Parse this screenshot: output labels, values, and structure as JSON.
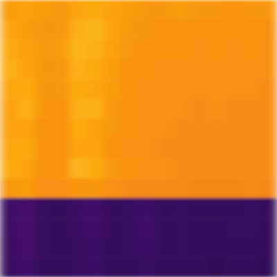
{
  "chart_data": {
    "type": "heatmap",
    "tick_labels": false,
    "zlim": [
      0,
      1
    ],
    "cells": [
      [
        0.78,
        0.79,
        0.78,
        0.77,
        0.8,
        0.81,
        0.79,
        0.78,
        0.77,
        0.77,
        0.78,
        0.77,
        0.77,
        0.76,
        0.77,
        0.77
      ],
      [
        0.8,
        0.78,
        0.77,
        0.77,
        0.82,
        0.83,
        0.8,
        0.77,
        0.77,
        0.76,
        0.76,
        0.76,
        0.76,
        0.76,
        0.76,
        0.76
      ],
      [
        0.81,
        0.79,
        0.77,
        0.78,
        0.83,
        0.82,
        0.79,
        0.77,
        0.76,
        0.76,
        0.76,
        0.75,
        0.76,
        0.75,
        0.76,
        0.75
      ],
      [
        0.82,
        0.8,
        0.77,
        0.77,
        0.82,
        0.81,
        0.78,
        0.76,
        0.76,
        0.75,
        0.75,
        0.75,
        0.75,
        0.75,
        0.75,
        0.75
      ],
      [
        0.8,
        0.81,
        0.77,
        0.77,
        0.81,
        0.8,
        0.78,
        0.76,
        0.75,
        0.75,
        0.75,
        0.75,
        0.75,
        0.75,
        0.75,
        0.74
      ],
      [
        0.79,
        0.82,
        0.77,
        0.76,
        0.82,
        0.82,
        0.77,
        0.76,
        0.75,
        0.75,
        0.75,
        0.74,
        0.75,
        0.74,
        0.74,
        0.74
      ],
      [
        0.79,
        0.8,
        0.76,
        0.76,
        0.81,
        0.79,
        0.77,
        0.76,
        0.75,
        0.75,
        0.74,
        0.74,
        0.74,
        0.74,
        0.74,
        0.74
      ],
      [
        0.8,
        0.81,
        0.76,
        0.76,
        0.8,
        0.8,
        0.76,
        0.75,
        0.75,
        0.74,
        0.74,
        0.74,
        0.74,
        0.74,
        0.74,
        0.74
      ],
      [
        0.81,
        0.8,
        0.76,
        0.76,
        0.83,
        0.81,
        0.77,
        0.76,
        0.75,
        0.75,
        0.74,
        0.74,
        0.74,
        0.74,
        0.74,
        0.74
      ],
      [
        0.77,
        0.78,
        0.75,
        0.75,
        0.77,
        0.77,
        0.75,
        0.74,
        0.74,
        0.74,
        0.74,
        0.73,
        0.73,
        0.73,
        0.74,
        0.73
      ],
      [
        0.19,
        0.21,
        0.18,
        0.17,
        0.19,
        0.2,
        0.17,
        0.18,
        0.19,
        0.17,
        0.18,
        0.17,
        0.17,
        0.17,
        0.18,
        0.17
      ],
      [
        0.19,
        0.22,
        0.18,
        0.17,
        0.19,
        0.2,
        0.17,
        0.18,
        0.2,
        0.17,
        0.18,
        0.17,
        0.17,
        0.18,
        0.18,
        0.17
      ],
      [
        0.18,
        0.21,
        0.18,
        0.17,
        0.18,
        0.19,
        0.17,
        0.18,
        0.19,
        0.17,
        0.18,
        0.17,
        0.17,
        0.17,
        0.17,
        0.17
      ],
      [
        0.18,
        0.2,
        0.17,
        0.17,
        0.18,
        0.19,
        0.17,
        0.17,
        0.18,
        0.17,
        0.17,
        0.17,
        0.16,
        0.17,
        0.17,
        0.16
      ]
    ]
  }
}
